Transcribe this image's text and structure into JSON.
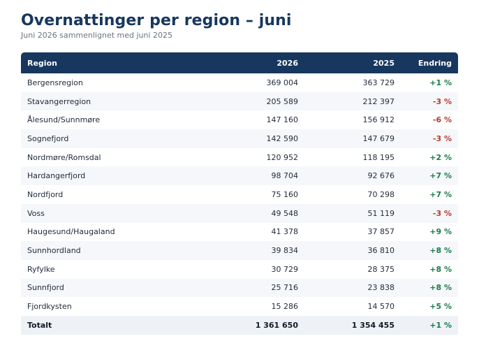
{
  "header": {
    "title": "Overnattinger per region – juni",
    "subtitle": "Juni 2026 sammenlignet med juni 2025"
  },
  "table": {
    "columns": [
      "Region",
      "2026",
      "2025",
      "Endring"
    ],
    "rows": [
      {
        "region": "Bergensregion",
        "y2026": "369 004",
        "y2025": "363 729",
        "change": "+1 %",
        "trend": "up"
      },
      {
        "region": "Stavangerregion",
        "y2026": "205 589",
        "y2025": "212 397",
        "change": "-3 %",
        "trend": "down"
      },
      {
        "region": "Ålesund/Sunnmøre",
        "y2026": "147 160",
        "y2025": "156 912",
        "change": "-6 %",
        "trend": "down"
      },
      {
        "region": "Sognefjord",
        "y2026": "142 590",
        "y2025": "147 679",
        "change": "-3 %",
        "trend": "down"
      },
      {
        "region": "Nordmøre/Romsdal",
        "y2026": "120 952",
        "y2025": "118 195",
        "change": "+2 %",
        "trend": "up"
      },
      {
        "region": "Hardangerfjord",
        "y2026": "98 704",
        "y2025": "92 676",
        "change": "+7 %",
        "trend": "up"
      },
      {
        "region": "Nordfjord",
        "y2026": "75 160",
        "y2025": "70 298",
        "change": "+7 %",
        "trend": "up"
      },
      {
        "region": "Voss",
        "y2026": "49 548",
        "y2025": "51 119",
        "change": "-3 %",
        "trend": "down"
      },
      {
        "region": "Haugesund/Haugaland",
        "y2026": "41 378",
        "y2025": "37 857",
        "change": "+9 %",
        "trend": "up"
      },
      {
        "region": "Sunnhordland",
        "y2026": "39 834",
        "y2025": "36 810",
        "change": "+8 %",
        "trend": "up"
      },
      {
        "region": "Ryfylke",
        "y2026": "30 729",
        "y2025": "28 375",
        "change": "+8 %",
        "trend": "up"
      },
      {
        "region": "Sunnfjord",
        "y2026": "25 716",
        "y2025": "23 838",
        "change": "+8 %",
        "trend": "up"
      },
      {
        "region": "Fjordkysten",
        "y2026": "15 286",
        "y2025": "14 570",
        "change": "+5 %",
        "trend": "up"
      }
    ],
    "total": {
      "region": "Totalt",
      "y2026": "1 361 650",
      "y2025": "1 354 455",
      "change": "+1 %",
      "trend": "up"
    }
  },
  "colors": {
    "header_bg": "#17375e",
    "title": "#17375e",
    "positive": "#1a7a4c",
    "negative": "#b83a2e",
    "row_stripe": "#f5f7fa",
    "total_bg": "#eef2f6"
  }
}
